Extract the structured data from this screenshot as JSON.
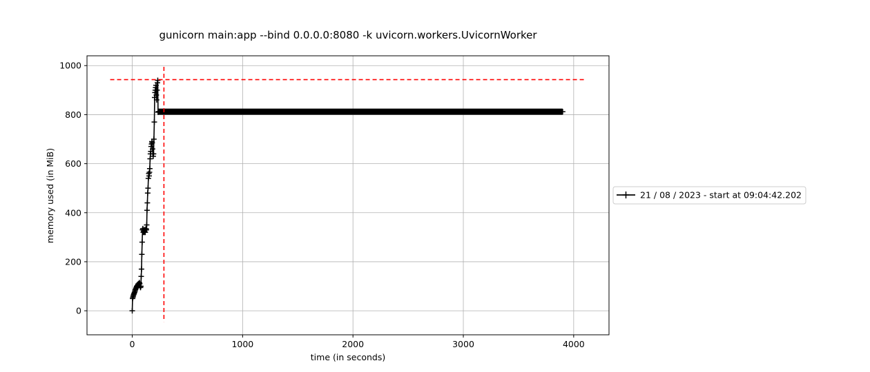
{
  "chart_data": {
    "type": "line",
    "title": "gunicorn main:app --bind 0.0.0.0:8080 -k uvicorn.workers.UvicornWorker",
    "xlabel": "time (in seconds)",
    "ylabel": "memory used (in MiB)",
    "xlim": [
      -410,
      4320
    ],
    "ylim": [
      -98,
      1040
    ],
    "xticks": [
      0,
      1000,
      2000,
      3000,
      4000
    ],
    "xtick_labels": [
      "0",
      "1000",
      "2000",
      "3000",
      "4000"
    ],
    "yticks": [
      0,
      200,
      400,
      600,
      800,
      1000
    ],
    "ytick_labels": [
      "0",
      "200",
      "400",
      "600",
      "800",
      "1000"
    ],
    "grid": true,
    "legend_position": "right, outside plot",
    "series": [
      {
        "name": "21 / 08 / 2023 - start at 09:04:42.202",
        "color": "#000000",
        "marker": "+",
        "x": [
          0,
          3,
          6,
          9,
          12,
          15,
          18,
          21,
          25,
          28,
          31,
          34,
          37,
          40,
          43,
          46,
          50,
          53,
          56,
          59,
          62,
          65,
          68,
          71,
          75,
          78,
          81,
          84,
          87,
          90,
          93,
          96,
          100,
          103,
          106,
          109,
          112,
          115,
          118,
          121,
          125,
          128,
          131,
          134,
          137,
          140,
          143,
          146,
          150,
          153,
          156,
          159,
          162,
          165,
          168,
          171,
          175,
          178,
          181,
          184,
          187,
          190,
          193,
          196,
          200,
          203,
          206,
          209,
          212,
          215,
          218,
          221,
          225,
          228,
          231,
          234,
          237,
          240,
          243,
          246,
          250,
          253,
          256,
          259,
          262,
          265,
          268,
          271,
          275,
          278,
          281,
          284,
          287,
          290,
          300,
          400,
          500,
          600,
          700,
          800,
          900,
          1000,
          1100,
          1200,
          1300,
          1400,
          1500,
          1600,
          1700,
          1800,
          1900,
          2000,
          2100,
          2200,
          2300,
          2400,
          2500,
          2600,
          2700,
          2800,
          2900,
          3000,
          3100,
          3200,
          3300,
          3400,
          3500,
          3600,
          3700,
          3800,
          3900
        ],
        "y": [
          0,
          50,
          55,
          60,
          65,
          68,
          72,
          75,
          80,
          85,
          88,
          92,
          95,
          100,
          98,
          102,
          105,
          108,
          110,
          105,
          112,
          115,
          110,
          100,
          95,
          100,
          140,
          170,
          230,
          280,
          330,
          335,
          320,
          325,
          330,
          320,
          325,
          330,
          320,
          330,
          335,
          330,
          350,
          410,
          440,
          480,
          500,
          540,
          560,
          550,
          565,
          580,
          620,
          640,
          650,
          670,
          680,
          690,
          685,
          660,
          640,
          630,
          640,
          700,
          770,
          870,
          890,
          900,
          910,
          920,
          880,
          860,
          900,
          930,
          940,
          810,
          812,
          812,
          812,
          812,
          812,
          812,
          812,
          812,
          812,
          812,
          812,
          812,
          812,
          812,
          812,
          812,
          812,
          812,
          812,
          812,
          812,
          812,
          812,
          812,
          812,
          812,
          812,
          812,
          812,
          812,
          812,
          812,
          812,
          812,
          812,
          812,
          812,
          812,
          812,
          812,
          812,
          812,
          812,
          812,
          812,
          812,
          812,
          812,
          812,
          812,
          812,
          812,
          812,
          812,
          812
        ]
      }
    ],
    "reference_lines": [
      {
        "orientation": "horizontal",
        "value": 943,
        "from": -200,
        "to": 4100,
        "color": "#ff0000",
        "style": "dashed"
      },
      {
        "orientation": "vertical",
        "value": 287,
        "from": -45,
        "to": 995,
        "color": "#ff0000",
        "style": "dashed"
      }
    ],
    "colors": {
      "grid": "#b0b0b0",
      "axes": "#000000"
    }
  }
}
